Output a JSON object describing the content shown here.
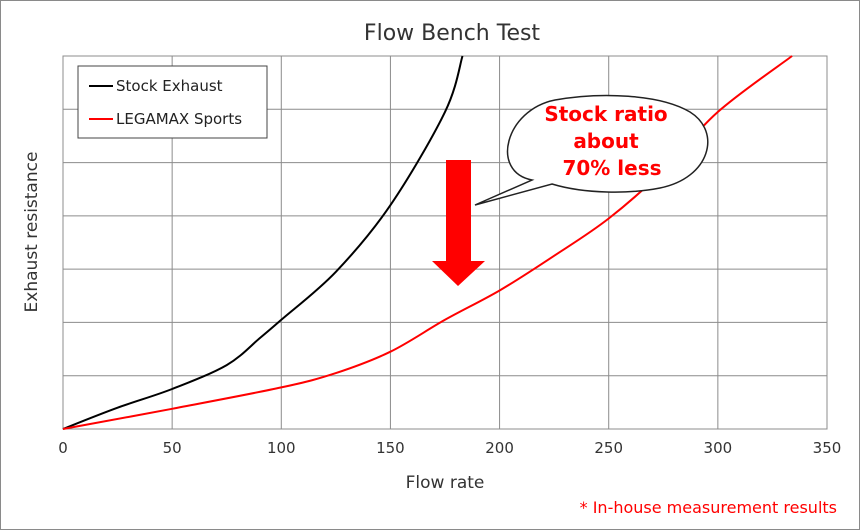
{
  "chart_data": {
    "type": "line",
    "title": "Flow Bench Test",
    "xlabel": "Flow rate",
    "ylabel": "Exhaust resistance",
    "xlim": [
      0,
      350
    ],
    "ylim": [
      0,
      7
    ],
    "x_ticks": [
      0,
      50,
      100,
      150,
      200,
      250,
      300,
      350
    ],
    "y_gridlines": 7,
    "y_tick_labels_shown": false,
    "grid": true,
    "legend": {
      "placement": "top-left"
    },
    "series": [
      {
        "name": "Stock Exhaust",
        "color": "#000000",
        "points": [
          [
            0,
            0
          ],
          [
            25,
            0.4
          ],
          [
            50,
            0.75
          ],
          [
            75,
            1.2
          ],
          [
            90,
            1.7
          ],
          [
            100,
            2.05
          ],
          [
            125,
            2.95
          ],
          [
            150,
            4.2
          ],
          [
            175,
            5.95
          ],
          [
            183,
            7.0
          ]
        ]
      },
      {
        "name": "LEGAMAX Sports",
        "color": "#ff0000",
        "points": [
          [
            0,
            0
          ],
          [
            50,
            0.38
          ],
          [
            100,
            0.78
          ],
          [
            125,
            1.05
          ],
          [
            150,
            1.45
          ],
          [
            175,
            2.05
          ],
          [
            200,
            2.6
          ],
          [
            225,
            3.25
          ],
          [
            250,
            3.95
          ],
          [
            275,
            4.85
          ],
          [
            300,
            5.95
          ],
          [
            334,
            7.0
          ]
        ]
      }
    ],
    "annotations": {
      "callout_lines": [
        "Stock ratio",
        "about",
        "70% less"
      ],
      "callout_color": "#ff0000",
      "arrow_icon": "down-arrow-icon",
      "arrow_color": "#ff0000"
    }
  },
  "footnote": "* In-house measurement results"
}
